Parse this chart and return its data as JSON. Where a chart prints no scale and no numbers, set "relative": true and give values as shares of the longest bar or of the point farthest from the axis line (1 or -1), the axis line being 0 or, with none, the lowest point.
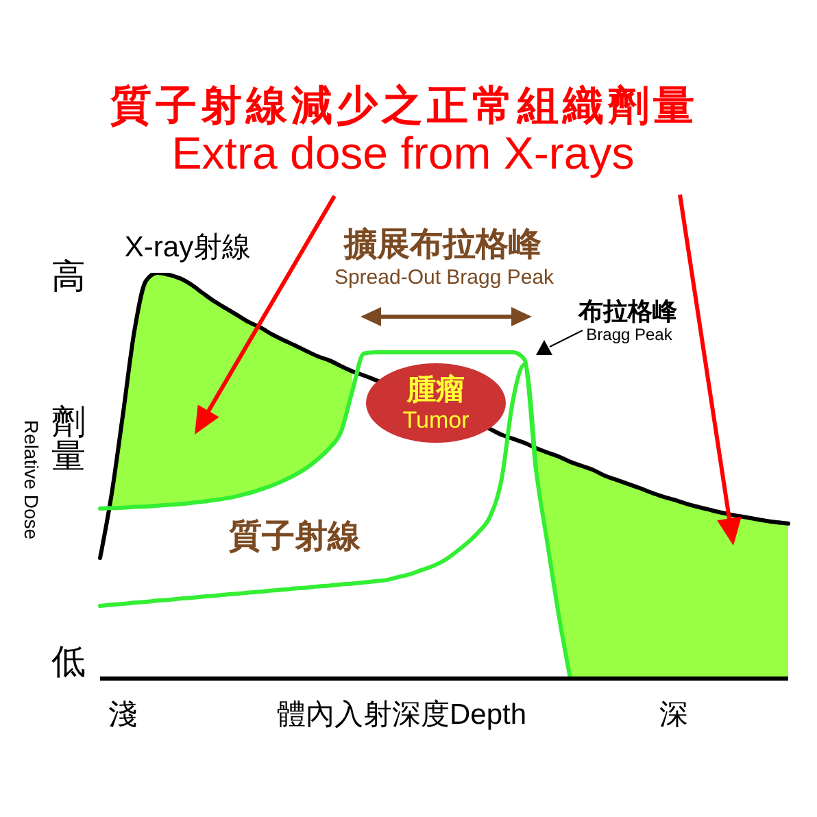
{
  "chart_data": {
    "type": "line",
    "title": "質子射線減少之正常組織劑量",
    "subtitle": "Extra dose from X-rays",
    "xlabel": "體內入射深度Depth",
    "ylabel": "Relative Dose",
    "relative": true,
    "categories": [
      null,
      null,
      "淺",
      null,
      null,
      null,
      null,
      null,
      null,
      null,
      null,
      null,
      null,
      null,
      null,
      null,
      null,
      null,
      null,
      null,
      null,
      null,
      null,
      null,
      null,
      null,
      null,
      null,
      null,
      null,
      null,
      null,
      null,
      null,
      null,
      null,
      null,
      null,
      null,
      null,
      null,
      null,
      null,
      null,
      null,
      null,
      null,
      null,
      null,
      null,
      "深",
      null,
      null,
      null,
      null,
      null,
      null,
      null,
      null,
      null,
      null
    ],
    "series": [
      {
        "type": "area",
        "color": "#99ff44",
        "values": [
          null,
          0.453,
          0.652,
          0.858,
          0.98,
          1,
          0.995,
          0.986,
          0.97,
          0.949,
          0.929,
          0.912,
          0.895,
          0.878,
          0.865,
          0.848,
          0.834,
          0.821,
          0.807,
          0.794,
          0.784,
          0.77,
          0.757,
          null,
          null,
          null,
          null,
          null,
          null,
          null,
          null,
          null,
          null,
          null,
          null,
          null,
          null,
          null,
          0.568,
          0.557,
          0.547,
          0.534,
          0.524,
          0.514,
          0.5,
          0.49,
          0.48,
          0.47,
          0.459,
          0.449,
          0.441,
          0.432,
          0.424,
          0.417,
          0.41,
          0.404,
          0.399,
          0.394,
          0.389,
          0.385,
          0.382
        ]
      },
      {
        "name": "X-ray射線",
        "color": "#000000",
        "values": [
          0.297,
          0.453,
          0.652,
          0.858,
          0.98,
          1,
          0.995,
          0.986,
          0.97,
          0.949,
          0.929,
          0.912,
          0.895,
          0.878,
          0.865,
          0.848,
          0.834,
          0.821,
          0.807,
          0.794,
          0.784,
          0.77,
          0.757,
          0.747,
          0.736,
          null,
          null,
          null,
          null,
          null,
          null,
          null,
          null,
          null,
          0.615,
          0.601,
          0.591,
          0.581,
          0.568,
          0.557,
          0.547,
          0.534,
          0.524,
          0.514,
          0.5,
          0.49,
          0.48,
          0.47,
          0.459,
          0.449,
          0.441,
          0.432,
          0.424,
          0.417,
          0.41,
          0.404,
          0.399,
          0.394,
          0.389,
          0.385,
          0.382
        ]
      },
      {
        "color": "#33ee33",
        "values": [
          0.419,
          0.42,
          0.421,
          0.423,
          0.424,
          0.426,
          0.428,
          0.43,
          0.433,
          0.436,
          0.44,
          0.444,
          0.45,
          0.457,
          0.466,
          0.476,
          0.488,
          0.502,
          0.519,
          0.541,
          0.568,
          0.608,
          0.709,
          0.801,
          0.804,
          0.804,
          0.804,
          0.804,
          0.804,
          0.804,
          0.804,
          0.804,
          0.804,
          0.804,
          0.804,
          0.804,
          0.804,
          0.787,
          0.517,
          0.334,
          0.155,
          0,
          null,
          null,
          null,
          null,
          null,
          null,
          null,
          null,
          null,
          null,
          null,
          null,
          null,
          null,
          null,
          null,
          null,
          null,
          null
        ]
      },
      {
        "name": "質子射線",
        "color": "#33ee33",
        "values": [
          0.179,
          0.182,
          0.184,
          0.187,
          0.189,
          0.192,
          0.194,
          0.197,
          0.199,
          0.202,
          0.204,
          0.207,
          0.209,
          0.212,
          0.214,
          0.217,
          0.219,
          0.222,
          0.224,
          0.227,
          0.229,
          0.232,
          0.234,
          0.237,
          0.24,
          0.243,
          0.25,
          0.257,
          0.267,
          0.277,
          0.291,
          0.311,
          0.334,
          0.361,
          0.399,
          0.49,
          0.686,
          0.774,
          0.517,
          null,
          null,
          null,
          null,
          null,
          null,
          null,
          null,
          null,
          null,
          null,
          null,
          null,
          null,
          null,
          null,
          null,
          null,
          null,
          null,
          null,
          null
        ]
      }
    ],
    "annotations": [
      "擴展布拉格峰",
      "Spread-Out Bragg Peak",
      "布拉格峰",
      "Bragg Peak",
      "腫瘤",
      "Tumor",
      "高",
      "低",
      "劑量"
    ]
  }
}
